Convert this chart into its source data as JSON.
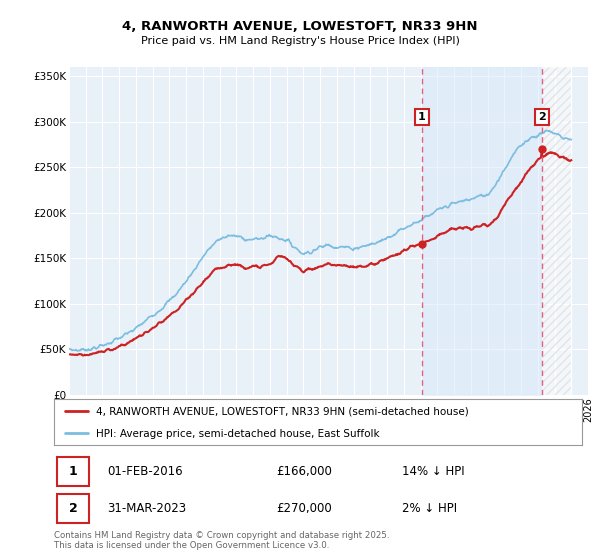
{
  "title1": "4, RANWORTH AVENUE, LOWESTOFT, NR33 9HN",
  "title2": "Price paid vs. HM Land Registry's House Price Index (HPI)",
  "background_color": "#ffffff",
  "plot_bg_color": "#e8f0f8",
  "grid_color": "#ffffff",
  "sale1_year": 2016.08,
  "sale1_price": 166000,
  "sale2_year": 2023.25,
  "sale2_price": 270000,
  "legend_line1": "4, RANWORTH AVENUE, LOWESTOFT, NR33 9HN (semi-detached house)",
  "legend_line2": "HPI: Average price, semi-detached house, East Suffolk",
  "sale1_date": "01-FEB-2016",
  "sale1_pct": "14%",
  "sale2_date": "31-MAR-2023",
  "sale2_pct": "2%",
  "copyright": "Contains HM Land Registry data © Crown copyright and database right 2025.\nThis data is licensed under the Open Government Licence v3.0.",
  "xmin": 1995,
  "xmax": 2026,
  "ymin": 0,
  "ymax": 360000,
  "hpi_color": "#7bbde0",
  "price_color": "#cc2222",
  "dashed_color": "#e06080",
  "shade_between_color": "#daeaf8"
}
